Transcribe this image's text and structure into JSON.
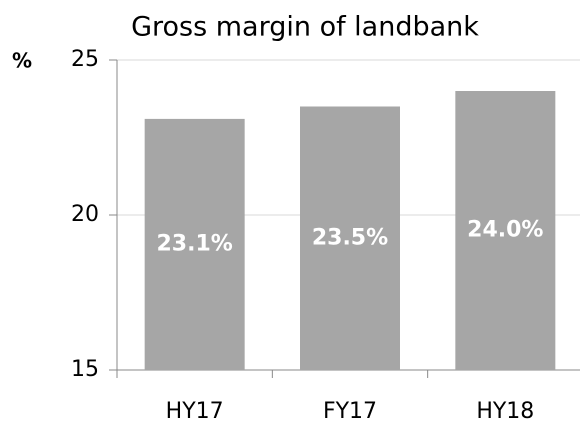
{
  "chart_data": {
    "type": "bar",
    "title": "Gross margin of landbank",
    "y_label": "%",
    "categories": [
      "HY17",
      "FY17",
      "HY18"
    ],
    "values": [
      23.1,
      23.5,
      24.0
    ],
    "value_labels": [
      "23.1%",
      "23.5%",
      "24.0%"
    ],
    "color": "#a6a6a6",
    "ylim": [
      15,
      25
    ],
    "yticks": [
      15,
      20,
      25
    ],
    "grid": true
  }
}
